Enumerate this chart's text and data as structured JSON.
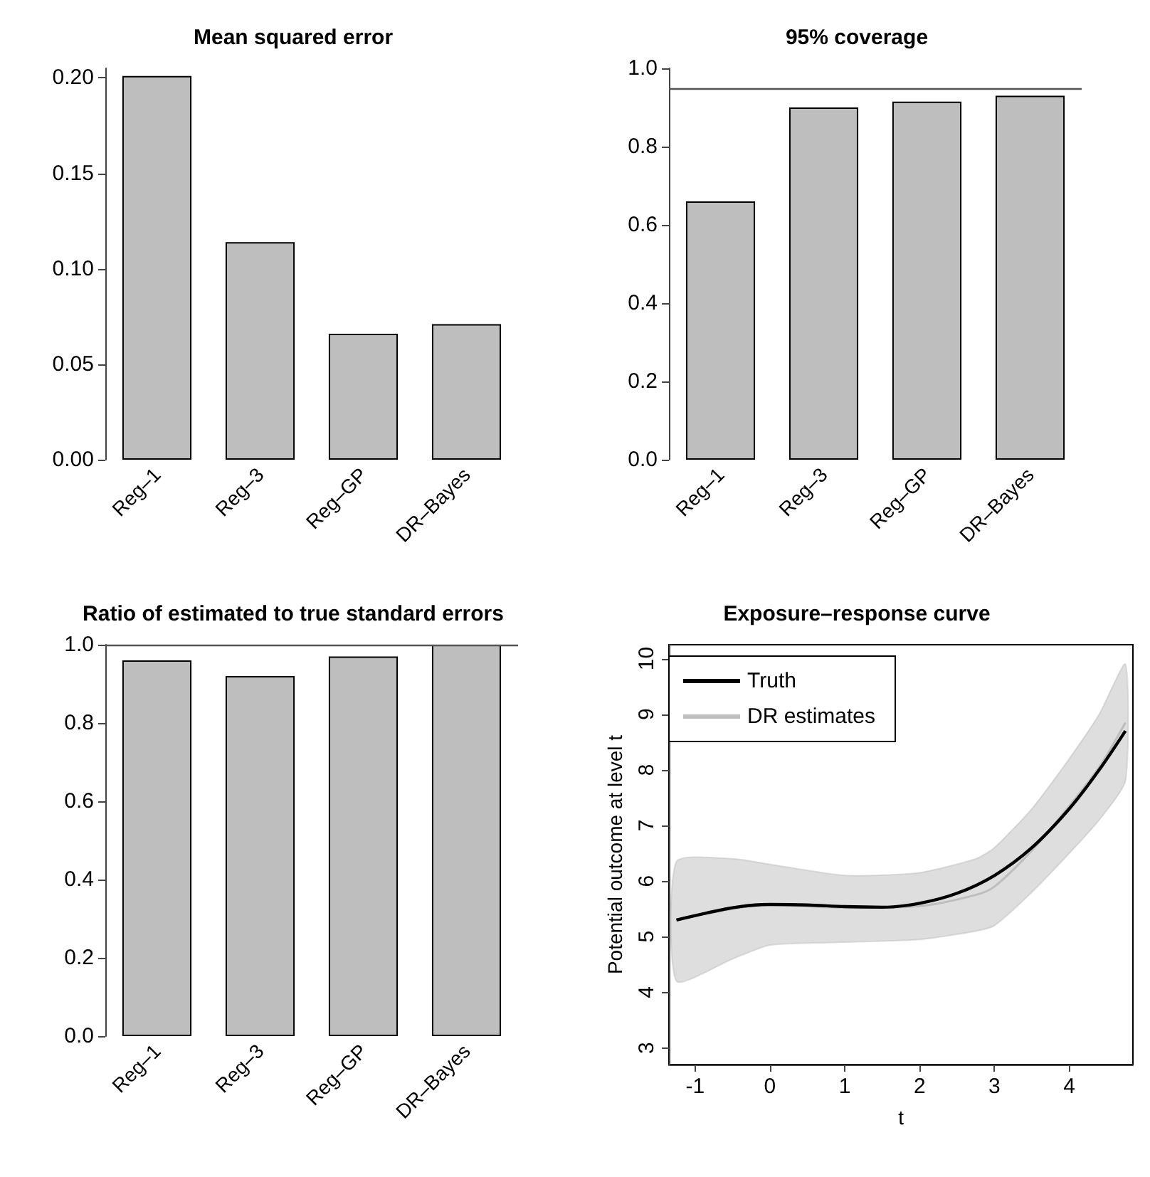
{
  "chart_data": [
    {
      "type": "bar",
      "title": "Mean squared error",
      "categories": [
        "Reg–1",
        "Reg–3",
        "Reg–GP",
        "DR–Bayes"
      ],
      "values": [
        0.201,
        0.114,
        0.066,
        0.071
      ],
      "color": "#bebebe",
      "ylim": [
        0,
        0.205
      ],
      "yticks": [
        {
          "value": 0,
          "label": "0.00"
        },
        {
          "value": 0.05,
          "label": "0.05"
        },
        {
          "value": 0.1,
          "label": "0.10"
        },
        {
          "value": 0.15,
          "label": "0.15"
        },
        {
          "value": 0.2,
          "label": "0.20"
        }
      ],
      "grid": false
    },
    {
      "type": "bar",
      "title": "95% coverage",
      "categories": [
        "Reg–1",
        "Reg–3",
        "Reg–GP",
        "DR–Bayes"
      ],
      "values": [
        0.66,
        0.9,
        0.915,
        0.93
      ],
      "color": "#bebebe",
      "ylim": [
        0,
        1
      ],
      "yticks": [
        {
          "value": 0,
          "label": "0.0"
        },
        {
          "value": 0.2,
          "label": "0.2"
        },
        {
          "value": 0.4,
          "label": "0.4"
        },
        {
          "value": 0.6,
          "label": "0.6"
        },
        {
          "value": 0.8,
          "label": "0.8"
        },
        {
          "value": 1,
          "label": "1.0"
        }
      ],
      "grid": false,
      "ref_lines": [
        {
          "axis": "y",
          "value": 0.95,
          "color": "#555555"
        }
      ]
    },
    {
      "type": "bar",
      "title": "Ratio of estimated to true standard errors",
      "categories": [
        "Reg–1",
        "Reg–3",
        "Reg–GP",
        "DR–Bayes"
      ],
      "values": [
        0.96,
        0.92,
        0.97,
        1.0
      ],
      "color": "#bebebe",
      "ylim": [
        0,
        1
      ],
      "yticks": [
        {
          "value": 0,
          "label": "0.0"
        },
        {
          "value": 0.2,
          "label": "0.2"
        },
        {
          "value": 0.4,
          "label": "0.4"
        },
        {
          "value": 0.6,
          "label": "0.6"
        },
        {
          "value": 0.8,
          "label": "0.8"
        },
        {
          "value": 1,
          "label": "1.0"
        }
      ],
      "grid": false,
      "ref_lines": [
        {
          "axis": "y",
          "value": 1,
          "color": "#555555"
        }
      ]
    },
    {
      "type": "line",
      "title": "Exposure–response curve",
      "xlabel": "t",
      "ylabel": "Potential outcome at level t",
      "xlim": [
        -1.35,
        4.85
      ],
      "xticks": [
        -1,
        0,
        1,
        2,
        3,
        4
      ],
      "ylim": [
        2.7,
        10.25
      ],
      "yticks": [
        3,
        4,
        5,
        6,
        7,
        8,
        9,
        10
      ],
      "grid": false,
      "legend": "top left",
      "marker": "none",
      "series": [
        {
          "name": "DR estimates",
          "color": "#bebebe",
          "x": [
            -1.25,
            -0.5,
            0,
            1,
            2,
            2.75,
            3,
            3.5,
            4,
            4.4,
            4.75
          ],
          "values": [
            5.3,
            5.5,
            5.58,
            5.52,
            5.55,
            5.75,
            5.9,
            6.55,
            7.35,
            8.05,
            8.85
          ],
          "lower": [
            4.2,
            4.6,
            4.85,
            4.9,
            4.95,
            5.1,
            5.2,
            5.8,
            6.5,
            7.1,
            7.8
          ],
          "upper": [
            6.35,
            6.4,
            6.3,
            6.1,
            6.15,
            6.4,
            6.6,
            7.3,
            8.2,
            9.0,
            9.9
          ]
        },
        {
          "name": "Truth",
          "color": "#000000",
          "x": [
            -1.25,
            -0.5,
            0,
            0.5,
            1,
            1.5,
            2,
            2.5,
            3,
            3.5,
            4,
            4.4,
            4.75
          ],
          "values": [
            5.3,
            5.52,
            5.58,
            5.57,
            5.54,
            5.53,
            5.6,
            5.78,
            6.1,
            6.6,
            7.3,
            8.0,
            8.7
          ]
        }
      ]
    }
  ]
}
